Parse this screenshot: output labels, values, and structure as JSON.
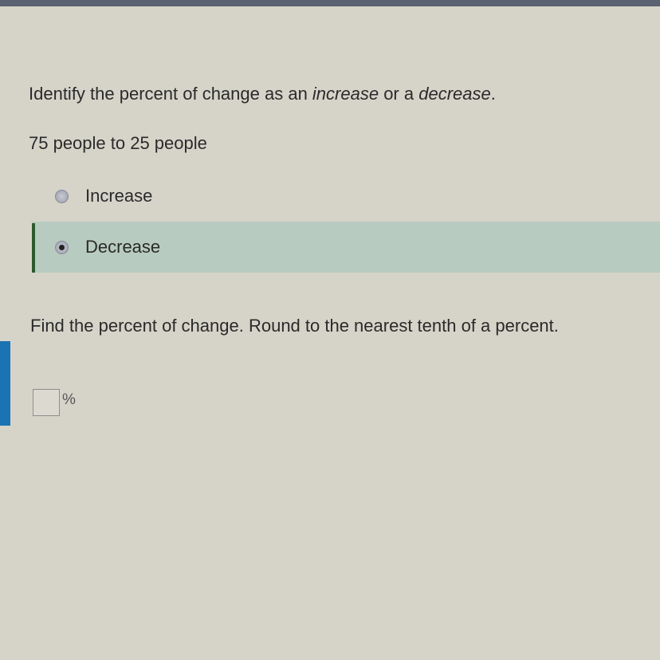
{
  "question1": {
    "prefix": "Identify the percent of change as an ",
    "increase_word": "increase",
    "middle": " or a ",
    "decrease_word": "decrease",
    "suffix": "."
  },
  "problem": "75 people to 25 people",
  "options": [
    {
      "label": "Increase",
      "selected": false
    },
    {
      "label": "Decrease",
      "selected": true
    }
  ],
  "question2": "Find the percent of change. Round to the nearest tenth of a percent.",
  "answer": {
    "value": "",
    "unit": "%"
  },
  "colors": {
    "accent": "#1a74b3",
    "selected_bg": "#b8cbc0",
    "selected_bar": "#2d5a2d"
  }
}
